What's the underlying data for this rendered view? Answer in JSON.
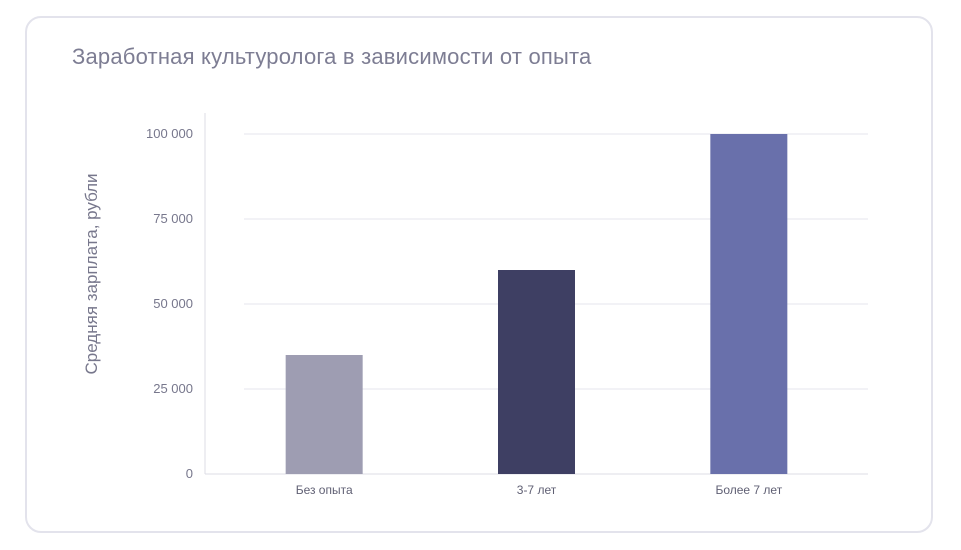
{
  "chart_data": {
    "type": "bar",
    "title": "Заработная культуролога в зависимости от опыта",
    "ylabel": "Средняя зарплата, рубли",
    "xlabel": "",
    "categories": [
      "Без опыта",
      "3-7 лет",
      "Более 7 лет"
    ],
    "values": [
      35000,
      60000,
      100000
    ],
    "ylim": [
      0,
      100000
    ],
    "yticks": [
      0,
      25000,
      50000,
      75000,
      100000
    ],
    "ytick_labels": [
      "0",
      "25 000",
      "50 000",
      "75 000",
      "100 000"
    ],
    "bar_colors": [
      "#9e9db2",
      "#3e3f63",
      "#6970ab"
    ],
    "grid": true,
    "legend": "none"
  }
}
